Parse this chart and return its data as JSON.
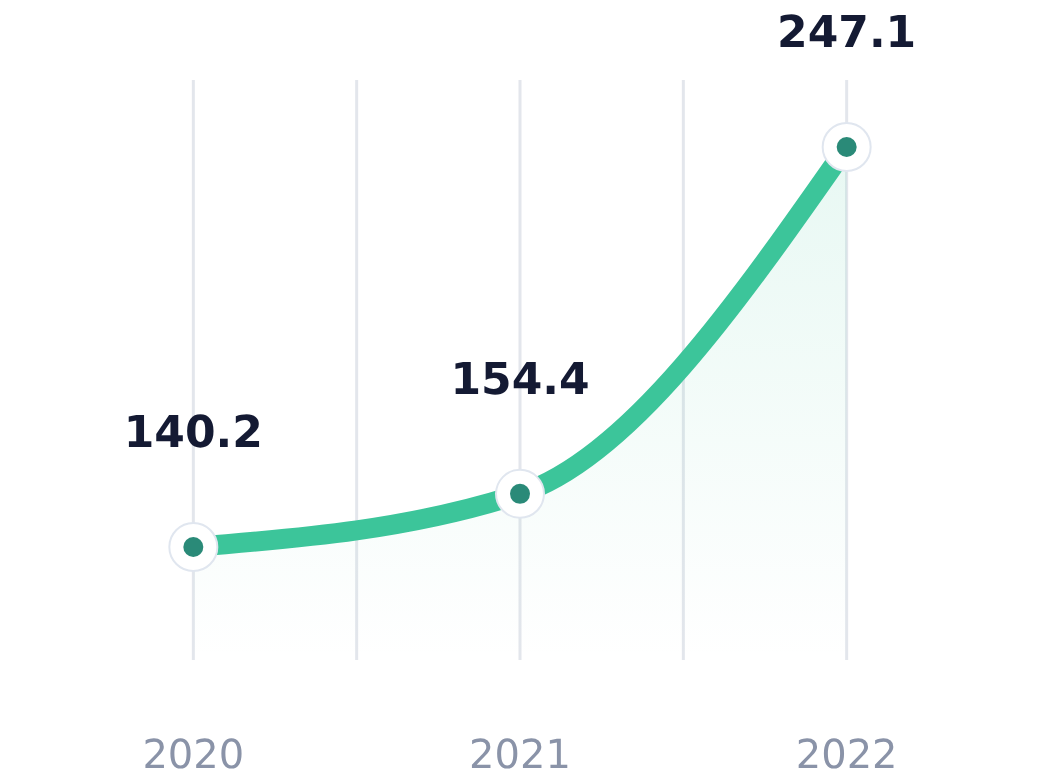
{
  "chart_data": {
    "type": "area",
    "categories": [
      "2020",
      "2021",
      "2022"
    ],
    "series": [
      {
        "color": "#3cc59a",
        "values": [
          140.2,
          154.4,
          247.1
        ]
      }
    ],
    "ylim": [
      110,
      265
    ],
    "grid": "x",
    "marker": "circle",
    "data_labels": true,
    "line_style": "solid"
  }
}
